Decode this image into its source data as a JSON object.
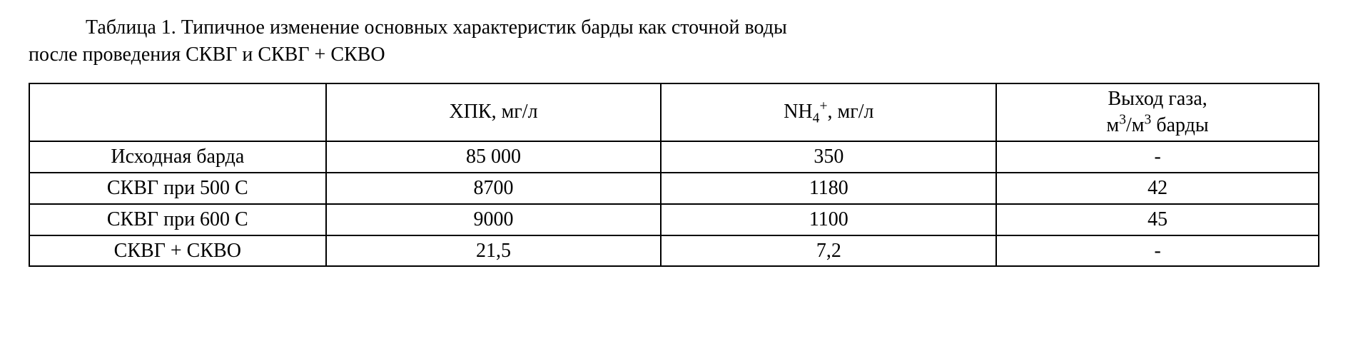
{
  "caption": {
    "line1": "Таблица 1. Типичное изменение основных характеристик барды как сточной воды",
    "line2": "после проведения СКВГ и СКВГ + СКВО"
  },
  "table": {
    "columns": [
      {
        "label": ""
      },
      {
        "label_html": "ХПК, мг/л"
      },
      {
        "label_html": "NH<sub>4</sub><sup>+</sup>, мг/л"
      },
      {
        "label_html": "Выход газа,<br>м<sup>3</sup>/м<sup>3</sup> барды"
      }
    ],
    "rows": [
      {
        "label": "Исходная барда",
        "c1": "85 000",
        "c2": "350",
        "c3": "-"
      },
      {
        "label": "СКВГ при 500 С",
        "c1": "8700",
        "c2": "1180",
        "c3": "42"
      },
      {
        "label": "СКВГ при 600 С",
        "c1": "9000",
        "c2": "1100",
        "c3": "45"
      },
      {
        "label": "СКВГ + СКВО",
        "c1": "21,5",
        "c2": "7,2",
        "c3": "-"
      }
    ],
    "border_color": "#000000",
    "background_color": "#ffffff",
    "text_color": "#000000",
    "font_family": "Times New Roman",
    "font_size_pt": 21,
    "col_widths_pct": [
      23,
      26,
      26,
      25
    ]
  }
}
